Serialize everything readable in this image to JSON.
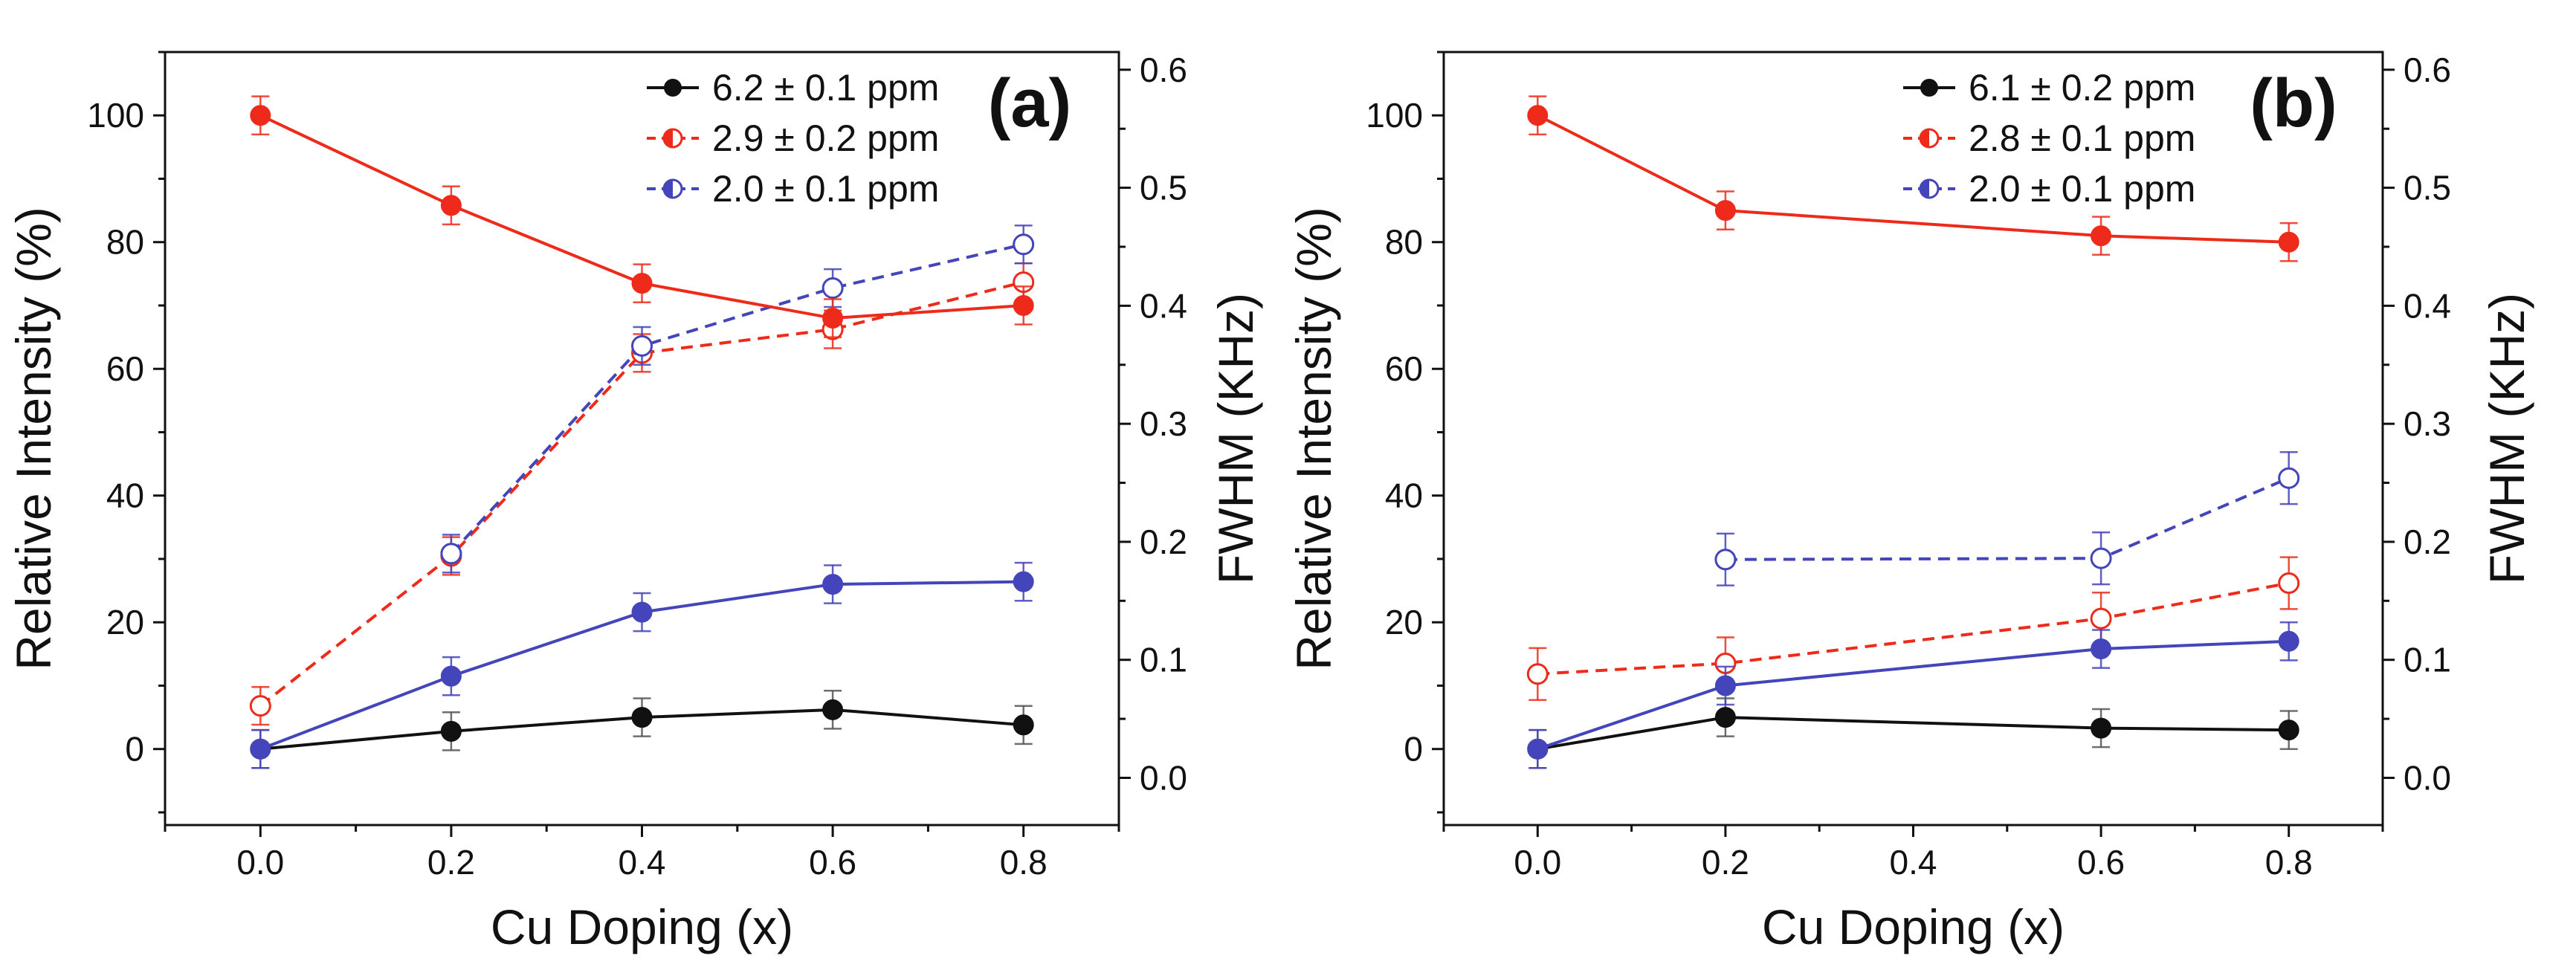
{
  "chart_data": [
    {
      "type": "line",
      "panel_label": "(a)",
      "xlabel": "Cu Doping (x)",
      "ylabel": "Relative Intensity (%)",
      "y2label": "FWHM (KHz)",
      "xlim": [
        -0.1,
        0.9
      ],
      "ylim": [
        -12,
        110
      ],
      "y2lim": [
        -0.04,
        0.615
      ],
      "xticks": [
        "0.0",
        "0.2",
        "0.4",
        "0.6",
        "0.8"
      ],
      "xtick_values": [
        0.0,
        0.2,
        0.4,
        0.6,
        0.8
      ],
      "yticks": [
        "0",
        "20",
        "40",
        "60",
        "80",
        "100"
      ],
      "ytick_values": [
        0,
        20,
        40,
        60,
        80,
        100
      ],
      "y2ticks": [
        "0.0",
        "0.1",
        "0.2",
        "0.3",
        "0.4",
        "0.5",
        "0.6"
      ],
      "y2tick_values": [
        0.0,
        0.1,
        0.2,
        0.3,
        0.4,
        0.5,
        0.6
      ],
      "legend_position": "top-right",
      "series": [
        {
          "name": "6.2 ± 0.1 ppm intensity",
          "legend": "6.2 ± 0.1 ppm",
          "axis": "left",
          "style": "solid",
          "marker": "filled",
          "color": "#111111",
          "x": [
            0.0,
            0.2,
            0.4,
            0.6,
            0.8
          ],
          "values": [
            0,
            2.8,
            5,
            6.2,
            3.8
          ],
          "errors": [
            3,
            3,
            3,
            3,
            3
          ]
        },
        {
          "name": "2.9 ± 0.2 ppm intensity",
          "legend": "2.9 ± 0.2 ppm",
          "axis": "left",
          "style": "solid",
          "marker": "filled",
          "color": "#ee2b1b",
          "x": [
            0.0,
            0.2,
            0.4,
            0.6,
            0.8
          ],
          "values": [
            100,
            85.8,
            73.5,
            68,
            70
          ],
          "errors": [
            3,
            3,
            3,
            3,
            3
          ]
        },
        {
          "name": "2.0 ± 0.1 ppm intensity",
          "legend": "2.0 ± 0.1 ppm",
          "axis": "left",
          "style": "solid",
          "marker": "filled",
          "color": "#4444bb",
          "x": [
            0.0,
            0.2,
            0.4,
            0.6,
            0.8
          ],
          "values": [
            0,
            11.5,
            21.6,
            26,
            26.4
          ],
          "errors": [
            3,
            3,
            3,
            3,
            3
          ]
        },
        {
          "name": "2.9 ± 0.2 ppm FWHM",
          "axis": "right",
          "style": "dashed",
          "marker": "open",
          "color": "#ee2b1b",
          "x": [
            0.0,
            0.2,
            0.4,
            0.6,
            0.8
          ],
          "values": [
            0.061,
            0.188,
            0.36,
            0.38,
            0.42
          ],
          "errors": [
            0.016,
            0.016,
            0.016,
            0.016,
            0.016
          ]
        },
        {
          "name": "2.0 ± 0.1 ppm FWHM",
          "axis": "right",
          "style": "dashed",
          "marker": "open",
          "color": "#4444bb",
          "x": [
            0.2,
            0.4,
            0.6,
            0.8
          ],
          "values": [
            0.19,
            0.366,
            0.415,
            0.452
          ],
          "errors": [
            0.016,
            0.016,
            0.016,
            0.016
          ]
        }
      ]
    },
    {
      "type": "line",
      "panel_label": "(b)",
      "xlabel": "Cu Doping (x)",
      "ylabel": "Relative Intensity (%)",
      "y2label": "FWHM (KHz)",
      "xlim": [
        -0.1,
        0.9
      ],
      "ylim": [
        -12,
        110
      ],
      "y2lim": [
        -0.04,
        0.615
      ],
      "xticks": [
        "0.0",
        "0.2",
        "0.4",
        "0.6",
        "0.8"
      ],
      "xtick_values": [
        0.0,
        0.2,
        0.4,
        0.6,
        0.8
      ],
      "yticks": [
        "0",
        "20",
        "40",
        "60",
        "80",
        "100"
      ],
      "ytick_values": [
        0,
        20,
        40,
        60,
        80,
        100
      ],
      "y2ticks": [
        "0.0",
        "0.1",
        "0.2",
        "0.3",
        "0.4",
        "0.5",
        "0.6"
      ],
      "y2tick_values": [
        0.0,
        0.1,
        0.2,
        0.3,
        0.4,
        0.5,
        0.6
      ],
      "legend_position": "top-right",
      "series": [
        {
          "name": "6.1 ± 0.2 ppm intensity",
          "legend": "6.1 ± 0.2 ppm",
          "axis": "left",
          "style": "solid",
          "marker": "filled",
          "color": "#111111",
          "x": [
            0.0,
            0.2,
            0.6,
            0.8
          ],
          "values": [
            0,
            5,
            3.3,
            3
          ],
          "errors": [
            3,
            3,
            3,
            3
          ]
        },
        {
          "name": "2.8 ± 0.1 ppm intensity",
          "legend": "2.8 ± 0.1 ppm",
          "axis": "left",
          "style": "solid",
          "marker": "filled",
          "color": "#ee2b1b",
          "x": [
            0.0,
            0.2,
            0.6,
            0.8
          ],
          "values": [
            100,
            85,
            81,
            80
          ],
          "errors": [
            3,
            3,
            3,
            3
          ]
        },
        {
          "name": "2.0 ± 0.1 ppm intensity",
          "legend": "2.0 ± 0.1 ppm",
          "axis": "left",
          "style": "solid",
          "marker": "filled",
          "color": "#4444bb",
          "x": [
            0.0,
            0.2,
            0.6,
            0.8
          ],
          "values": [
            0,
            10,
            15.8,
            17
          ],
          "errors": [
            3,
            3,
            3,
            3
          ]
        },
        {
          "name": "2.8 ± 0.1 ppm FWHM",
          "axis": "right",
          "style": "dashed",
          "marker": "open",
          "color": "#ee2b1b",
          "x": [
            0.0,
            0.2,
            0.6,
            0.8
          ],
          "values": [
            0.088,
            0.097,
            0.135,
            0.165
          ],
          "errors": [
            0.022,
            0.022,
            0.022,
            0.022
          ]
        },
        {
          "name": "2.0 ± 0.1 ppm FWHM",
          "axis": "right",
          "style": "dashed",
          "marker": "open",
          "color": "#4444bb",
          "x": [
            0.2,
            0.6,
            0.8
          ],
          "values": [
            0.185,
            0.186,
            0.254
          ],
          "errors": [
            0.022,
            0.022,
            0.022
          ]
        }
      ]
    }
  ]
}
